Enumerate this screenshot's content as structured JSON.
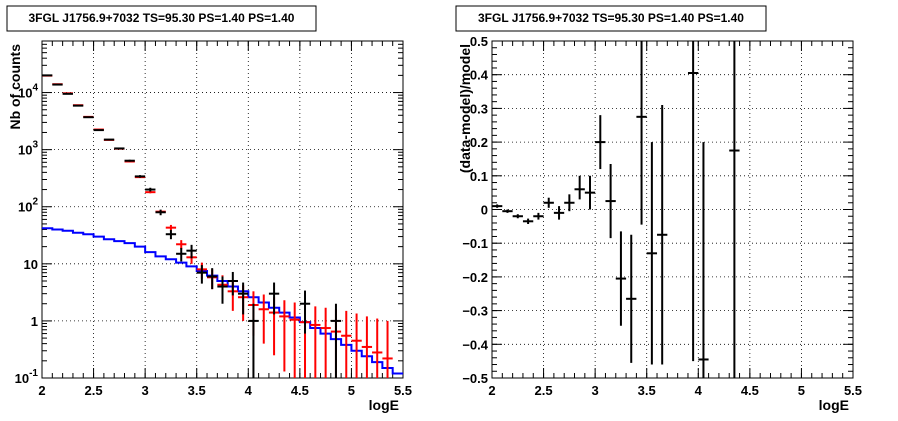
{
  "chart_data": [
    {
      "type": "scatter",
      "title": "3FGL J1756.9+7032 TS=95.30 PS=1.40 PS=1.40",
      "xlabel": "logE",
      "ylabel": "Nb of counts",
      "xlim": [
        2,
        5.5
      ],
      "ylim": [
        0.1,
        80000
      ],
      "yscale": "log",
      "grid": true,
      "x_ticks": [
        "2",
        "2.5",
        "3",
        "3.5",
        "4",
        "4.5",
        "5",
        "5.5"
      ],
      "y_ticks": [
        {
          "value": 0.1,
          "base": "10",
          "exp": "-1"
        },
        {
          "value": 1,
          "base": "1",
          "exp": ""
        },
        {
          "value": 10,
          "base": "10",
          "exp": ""
        },
        {
          "value": 100,
          "base": "10",
          "exp": "2"
        },
        {
          "value": 1000,
          "base": "10",
          "exp": "3"
        },
        {
          "value": 10000,
          "base": "10",
          "exp": "4"
        }
      ],
      "colors": {
        "data": "#000000",
        "model": "#ff0000",
        "background": "#0000ff"
      },
      "series": [
        {
          "role": "data",
          "points": [
            {
              "x": 2.05,
              "y": 20000,
              "lo": 19850,
              "hi": 20150
            },
            {
              "x": 2.15,
              "y": 13800,
              "lo": 13680,
              "hi": 13920
            },
            {
              "x": 2.25,
              "y": 9500,
              "lo": 9400,
              "hi": 9600
            },
            {
              "x": 2.35,
              "y": 5900,
              "lo": 5820,
              "hi": 5980
            },
            {
              "x": 2.45,
              "y": 3700,
              "lo": 3640,
              "hi": 3760
            },
            {
              "x": 2.55,
              "y": 2200,
              "lo": 2150,
              "hi": 2250
            },
            {
              "x": 2.65,
              "y": 1500,
              "lo": 1460,
              "hi": 1540
            },
            {
              "x": 2.75,
              "y": 1050,
              "lo": 1020,
              "hi": 1080
            },
            {
              "x": 2.85,
              "y": 640,
              "lo": 615,
              "hi": 665
            },
            {
              "x": 2.95,
              "y": 340,
              "lo": 322,
              "hi": 358
            },
            {
              "x": 3.05,
              "y": 200,
              "lo": 185,
              "hi": 215
            },
            {
              "x": 3.15,
              "y": 80,
              "lo": 71,
              "hi": 89
            },
            {
              "x": 3.25,
              "y": 33,
              "lo": 27,
              "hi": 39
            },
            {
              "x": 3.35,
              "y": 15,
              "lo": 11,
              "hi": 19
            },
            {
              "x": 3.45,
              "y": 17,
              "lo": 12.5,
              "hi": 21.5
            },
            {
              "x": 3.55,
              "y": 7,
              "lo": 4.5,
              "hi": 9.5
            },
            {
              "x": 3.65,
              "y": 6,
              "lo": 3.6,
              "hi": 8.4
            },
            {
              "x": 3.75,
              "y": 4,
              "lo": 2,
              "hi": 6
            },
            {
              "x": 3.85,
              "y": 5,
              "lo": 2.8,
              "hi": 7.2
            },
            {
              "x": 3.95,
              "y": 3,
              "lo": 1.3,
              "hi": 4.7
            },
            {
              "x": 4.05,
              "y": 1,
              "lo": 0.1,
              "hi": 2
            },
            {
              "x": 4.25,
              "y": 3,
              "lo": 1.3,
              "hi": 4.7
            },
            {
              "x": 4.55,
              "y": 2,
              "lo": 0.6,
              "hi": 3.4
            },
            {
              "x": 4.85,
              "y": 1,
              "lo": 0.1,
              "hi": 2
            }
          ]
        },
        {
          "role": "model",
          "points": [
            {
              "x": 2.05,
              "y": 19800,
              "lo": 19800,
              "hi": 19800
            },
            {
              "x": 2.15,
              "y": 14000,
              "lo": 14000,
              "hi": 14000
            },
            {
              "x": 2.25,
              "y": 9700,
              "lo": 9700,
              "hi": 9700
            },
            {
              "x": 2.35,
              "y": 6000,
              "lo": 6000,
              "hi": 6000
            },
            {
              "x": 2.45,
              "y": 3750,
              "lo": 3750,
              "hi": 3750
            },
            {
              "x": 2.55,
              "y": 2250,
              "lo": 2250,
              "hi": 2250
            },
            {
              "x": 2.65,
              "y": 1480,
              "lo": 1480,
              "hi": 1480
            },
            {
              "x": 2.75,
              "y": 1040,
              "lo": 1040,
              "hi": 1040
            },
            {
              "x": 2.85,
              "y": 620,
              "lo": 610,
              "hi": 630
            },
            {
              "x": 2.95,
              "y": 330,
              "lo": 320,
              "hi": 340
            },
            {
              "x": 3.05,
              "y": 180,
              "lo": 172,
              "hi": 188
            },
            {
              "x": 3.15,
              "y": 82,
              "lo": 77,
              "hi": 87
            },
            {
              "x": 3.25,
              "y": 43,
              "lo": 38,
              "hi": 48
            },
            {
              "x": 3.35,
              "y": 22,
              "lo": 18,
              "hi": 26
            },
            {
              "x": 3.45,
              "y": 13,
              "lo": 10,
              "hi": 16.5
            },
            {
              "x": 3.55,
              "y": 8,
              "lo": 5.5,
              "hi": 10.5
            },
            {
              "x": 3.65,
              "y": 5.8,
              "lo": 3.6,
              "hi": 8
            },
            {
              "x": 3.75,
              "y": 4.3,
              "lo": 2.3,
              "hi": 6.3
            },
            {
              "x": 3.85,
              "y": 3.3,
              "lo": 1.5,
              "hi": 5.1
            },
            {
              "x": 3.95,
              "y": 2.6,
              "lo": 1,
              "hi": 4.2
            },
            {
              "x": 4.05,
              "y": 1.9,
              "lo": 0.55,
              "hi": 3.3
            },
            {
              "x": 4.15,
              "y": 1.6,
              "lo": 0.4,
              "hi": 2.9
            },
            {
              "x": 4.25,
              "y": 1.4,
              "lo": 0.25,
              "hi": 2.6
            },
            {
              "x": 4.35,
              "y": 1.2,
              "lo": 0.13,
              "hi": 2.3
            },
            {
              "x": 4.45,
              "y": 1.05,
              "lo": 0.1,
              "hi": 2.1
            },
            {
              "x": 4.55,
              "y": 0.95,
              "lo": 0.1,
              "hi": 1.95
            },
            {
              "x": 4.65,
              "y": 0.85,
              "lo": 0.1,
              "hi": 1.8
            },
            {
              "x": 4.75,
              "y": 0.75,
              "lo": 0.1,
              "hi": 1.7
            },
            {
              "x": 4.85,
              "y": 0.65,
              "lo": 0.1,
              "hi": 1.6
            },
            {
              "x": 4.95,
              "y": 0.55,
              "lo": 0.1,
              "hi": 1.5
            },
            {
              "x": 5.05,
              "y": 0.45,
              "lo": 0.1,
              "hi": 1.35
            },
            {
              "x": 5.15,
              "y": 0.35,
              "lo": 0.1,
              "hi": 1.2
            },
            {
              "x": 5.25,
              "y": 0.28,
              "lo": 0.1,
              "hi": 1.1
            },
            {
              "x": 5.35,
              "y": 0.22,
              "lo": 0.1,
              "hi": 1
            }
          ]
        },
        {
          "role": "background",
          "step_edges_x": [
            2.0,
            2.1,
            2.2,
            2.3,
            2.4,
            2.5,
            2.6,
            2.7,
            2.8,
            2.9,
            3.0,
            3.1,
            3.2,
            3.3,
            3.4,
            3.5,
            3.6,
            3.7,
            3.8,
            3.9,
            4.0,
            4.1,
            4.2,
            4.3,
            4.4,
            4.5,
            4.6,
            4.7,
            4.8,
            4.9,
            5.0,
            5.1,
            5.2,
            5.3,
            5.4,
            5.5
          ],
          "values": [
            42,
            40,
            38,
            35,
            33,
            30,
            27,
            25,
            23,
            20,
            16,
            13.5,
            12,
            10.5,
            9,
            7.5,
            6.2,
            5,
            4,
            3.3,
            2.6,
            2.1,
            1.7,
            1.4,
            1.15,
            0.95,
            0.75,
            0.6,
            0.48,
            0.38,
            0.3,
            0.24,
            0.19,
            0.15,
            0.12
          ]
        }
      ]
    },
    {
      "type": "scatter",
      "title": "3FGL J1756.9+7032 TS=95.30 PS=1.40 PS=1.40",
      "xlabel": "logE",
      "ylabel": "(data-model)/model",
      "xlim": [
        2,
        5.5
      ],
      "ylim": [
        -0.5,
        0.5
      ],
      "grid": true,
      "x_ticks": [
        "2",
        "2.5",
        "3",
        "3.5",
        "4",
        "4.5",
        "5",
        "5.5"
      ],
      "y_ticks": [
        "−0.5",
        "−0.4",
        "−0.3",
        "−0.2",
        "−0.1",
        "0",
        "0.1",
        "0.2",
        "0.3",
        "0.4",
        "0.5"
      ],
      "colors": {
        "data": "#000000"
      },
      "series": [
        {
          "role": "data",
          "points": [
            {
              "x": 2.05,
              "y": 0.01,
              "lo": 0.005,
              "hi": 0.015
            },
            {
              "x": 2.15,
              "y": -0.005,
              "lo": -0.01,
              "hi": 0.0
            },
            {
              "x": 2.25,
              "y": -0.02,
              "lo": -0.026,
              "hi": -0.014
            },
            {
              "x": 2.35,
              "y": -0.035,
              "lo": -0.043,
              "hi": -0.027
            },
            {
              "x": 2.45,
              "y": -0.02,
              "lo": -0.03,
              "hi": -0.01
            },
            {
              "x": 2.55,
              "y": 0.02,
              "lo": 0.005,
              "hi": 0.035
            },
            {
              "x": 2.65,
              "y": -0.01,
              "lo": -0.03,
              "hi": 0.01
            },
            {
              "x": 2.75,
              "y": 0.02,
              "lo": -0.005,
              "hi": 0.045
            },
            {
              "x": 2.85,
              "y": 0.06,
              "lo": 0.03,
              "hi": 0.1
            },
            {
              "x": 2.95,
              "y": 0.05,
              "lo": 0.0,
              "hi": 0.1
            },
            {
              "x": 3.05,
              "y": 0.2,
              "lo": 0.12,
              "hi": 0.28
            },
            {
              "x": 3.15,
              "y": 0.025,
              "lo": -0.085,
              "hi": 0.135
            },
            {
              "x": 3.25,
              "y": -0.205,
              "lo": -0.345,
              "hi": -0.065
            },
            {
              "x": 3.35,
              "y": -0.265,
              "lo": -0.455,
              "hi": -0.075
            },
            {
              "x": 3.45,
              "y": 0.275,
              "lo": -0.045,
              "hi": 0.595
            },
            {
              "x": 3.55,
              "y": -0.13,
              "lo": -0.46,
              "hi": 0.2
            },
            {
              "x": 3.65,
              "y": -0.075,
              "lo": -0.46,
              "hi": 0.31
            },
            {
              "x": 3.95,
              "y": 0.405,
              "lo": -0.45,
              "hi": 1.2
            },
            {
              "x": 4.05,
              "y": -0.445,
              "lo": -0.5,
              "hi": 0.2
            },
            {
              "x": 4.35,
              "y": 0.175,
              "lo": -0.5,
              "hi": 1.0
            }
          ]
        }
      ]
    }
  ]
}
